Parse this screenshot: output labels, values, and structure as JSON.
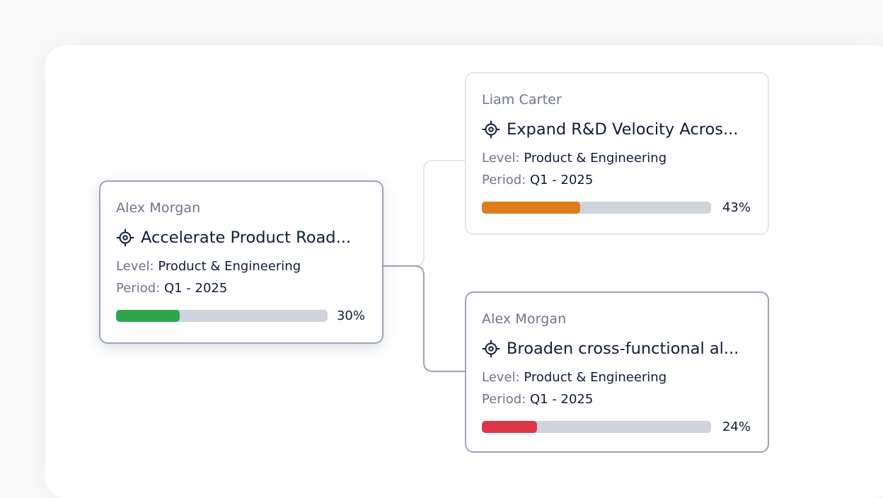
{
  "nodes": {
    "root": {
      "owner": "Alex Morgan",
      "title": "Accelerate Product Road...",
      "level_label": "Level:",
      "level_value": "Product & Engineering",
      "period_label": "Period:",
      "period_value": "Q1 - 2025",
      "progress": 30,
      "progress_text": "30%",
      "color": "#2ea64b"
    },
    "child_1": {
      "owner": "Liam Carter",
      "title": "Expand R&D Velocity Acros...",
      "level_label": "Level:",
      "level_value": "Product & Engineering",
      "period_label": "Period:",
      "period_value": "Q1 - 2025",
      "progress": 43,
      "progress_text": "43%",
      "color": "#e07b1e"
    },
    "child_2": {
      "owner": "Alex Morgan",
      "title": "Broaden cross-functional al...",
      "level_label": "Level:",
      "level_value": "Product & Engineering",
      "period_label": "Period:",
      "period_value": "Q1 - 2025",
      "progress": 24,
      "progress_text": "24%",
      "color": "#dc3545"
    }
  },
  "icons": {
    "goal": "target-icon"
  },
  "colors": {
    "connector_active": "#9ba3b4",
    "connector_muted": "#e5e7ea",
    "border_selected": "#9ba3b4",
    "border_muted": "#e5e7ea",
    "track": "#cfd3db"
  }
}
